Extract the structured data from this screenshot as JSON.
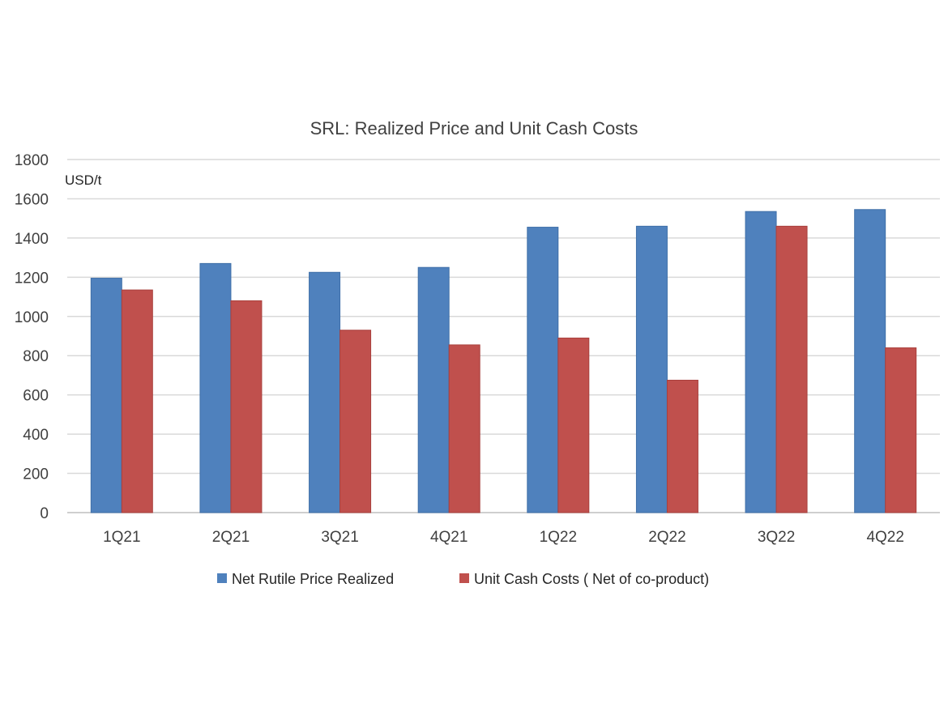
{
  "chart_data": {
    "type": "bar",
    "title": "SRL: Realized Price and Unit Cash Costs",
    "ylabel": "USD/t",
    "xlabel": "",
    "ylim": [
      0,
      1800
    ],
    "yticks": [
      "0",
      "200",
      "400",
      "600",
      "800",
      "1000",
      "1200",
      "1400",
      "1600",
      "1800"
    ],
    "grid": true,
    "legend_position": "bottom",
    "categories": [
      "1Q21",
      "2Q21",
      "3Q21",
      "4Q21",
      "1Q22",
      "2Q22",
      "3Q22",
      "4Q22"
    ],
    "series": [
      {
        "name": "Net Rutile Price Realized",
        "color": "#4f81bd",
        "values": [
          1195,
          1270,
          1225,
          1250,
          1455,
          1460,
          1535,
          1545
        ]
      },
      {
        "name": "Unit Cash Costs ( Net of co-product)",
        "color": "#c0504d",
        "values": [
          1135,
          1080,
          930,
          855,
          890,
          675,
          1460,
          840
        ]
      }
    ]
  }
}
